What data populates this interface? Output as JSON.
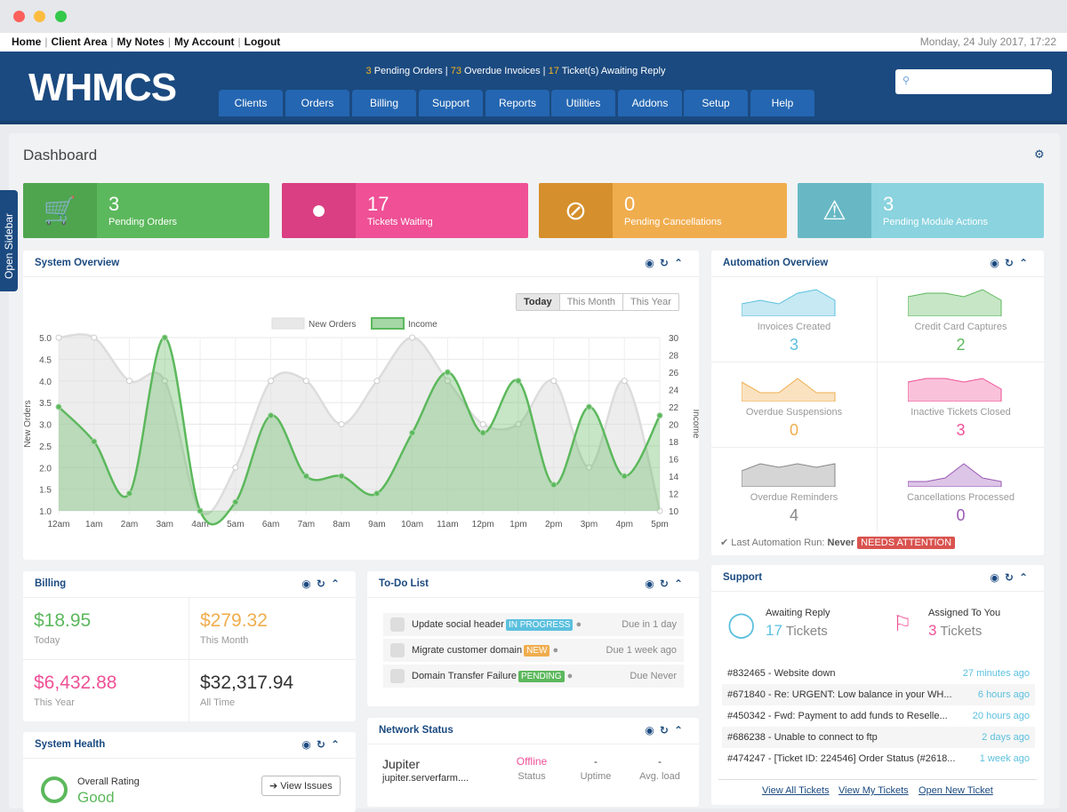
{
  "toplinks": [
    "Home",
    "Client Area",
    "My Notes",
    "My Account",
    "Logout"
  ],
  "datetime": "Monday, 24 July 2017, 17:22",
  "logo": "WHMCS",
  "alerts": {
    "pending_orders": "3",
    "pending_orders_label": " Pending Orders | ",
    "overdue": "73",
    "overdue_label": " Overdue Invoices | ",
    "tickets": "17",
    "tickets_label": " Ticket(s) Awaiting Reply"
  },
  "nav": [
    "Clients",
    "Orders",
    "Billing",
    "Support",
    "Reports",
    "Utilities",
    "Addons",
    "Setup",
    "Help"
  ],
  "search": {
    "value": "",
    "placeholder": ""
  },
  "sidebar_tab": "Open Sidebar",
  "page_title": "Dashboard",
  "tiles": [
    {
      "num": "3",
      "label": "Pending Orders",
      "color": "#5cb85c",
      "dark": "#4ea54e",
      "icon": "cart-icon"
    },
    {
      "num": "17",
      "label": "Tickets Waiting",
      "color": "#ef5096",
      "dark": "#d93f82",
      "icon": "comment-icon"
    },
    {
      "num": "0",
      "label": "Pending Cancellations",
      "color": "#f0ad4e",
      "dark": "#d58f2c",
      "icon": "ban-icon"
    },
    {
      "num": "3",
      "label": "Pending Module Actions",
      "color": "#8ad3df",
      "dark": "#67b8c4",
      "icon": "warning-icon"
    }
  ],
  "system_overview": {
    "title": "System Overview",
    "ranges": [
      "Today",
      "This Month",
      "This Year"
    ]
  },
  "chart_data": {
    "type": "line",
    "categories": [
      "12am",
      "1am",
      "2am",
      "3am",
      "4am",
      "5am",
      "6am",
      "7am",
      "8am",
      "9am",
      "10am",
      "11am",
      "12pm",
      "1pm",
      "2pm",
      "3pm",
      "4pm",
      "5pm"
    ],
    "series": [
      {
        "name": "New Orders",
        "axis": "left",
        "color": "#dcdcdc",
        "values": [
          5,
          5,
          4,
          4,
          1,
          2,
          4,
          4,
          3,
          4,
          5,
          4,
          3,
          3,
          4,
          2,
          4,
          1
        ]
      },
      {
        "name": "Income",
        "axis": "right",
        "color": "#5cb85c",
        "values": [
          22,
          18,
          12,
          30,
          10,
          11,
          21,
          14,
          14,
          12,
          19,
          26,
          19,
          25,
          13,
          22,
          14,
          21
        ]
      }
    ],
    "ylabel": "New Orders",
    "y2label": "Income",
    "ylim": [
      1,
      5
    ],
    "y2lim": [
      10,
      30
    ],
    "yticks": [
      "5.0",
      "4.5",
      "4.0",
      "3.5",
      "3.0",
      "2.5",
      "2.0",
      "1.5",
      "1.0"
    ],
    "y2ticks": [
      "30",
      "28",
      "26",
      "24",
      "22",
      "20",
      "18",
      "16",
      "14",
      "12",
      "10"
    ],
    "grid": true,
    "legend": "top-center"
  },
  "automation": {
    "title": "Automation Overview",
    "items": [
      {
        "label": "Invoices Created",
        "value": "3",
        "color": "#5bc0de"
      },
      {
        "label": "Credit Card Captures",
        "value": "2",
        "color": "#5cb85c"
      },
      {
        "label": "Overdue Suspensions",
        "value": "0",
        "color": "#f0ad4e"
      },
      {
        "label": "Inactive Tickets Closed",
        "value": "3",
        "color": "#ef5096"
      },
      {
        "label": "Overdue Reminders",
        "value": "4",
        "color": "#888888"
      },
      {
        "label": "Cancellations Processed",
        "value": "0",
        "color": "#9b59b6"
      }
    ],
    "last_run_label": "Last Automation Run:",
    "last_run": "Never",
    "status": "NEEDS ATTENTION"
  },
  "billing": {
    "title": "Billing",
    "items": [
      {
        "value": "$18.95",
        "label": "Today",
        "color": "#5cb85c"
      },
      {
        "value": "$279.32",
        "label": "This Month",
        "color": "#f0ad4e"
      },
      {
        "value": "$6,432.88",
        "label": "This Year",
        "color": "#ef5096"
      },
      {
        "value": "$32,317.94",
        "label": "All Time",
        "color": "#333333"
      }
    ]
  },
  "todo": {
    "title": "To-Do List",
    "items": [
      {
        "text": "Update social header",
        "badge": "IN PROGRESS",
        "badge_color": "#5bc0de",
        "due": "Due in 1 day"
      },
      {
        "text": "Migrate customer domain",
        "badge": "NEW",
        "badge_color": "#f0ad4e",
        "due": "Due 1 week ago"
      },
      {
        "text": "Domain Transfer Failure",
        "badge": "PENDING",
        "badge_color": "#5cb85c",
        "due": "Due Never"
      }
    ]
  },
  "health": {
    "title": "System Health",
    "rating_label": "Overall Rating",
    "rating": "Good",
    "button": "View Issues"
  },
  "network": {
    "title": "Network Status",
    "server": "Jupiter",
    "host": "jupiter.serverfarm....",
    "status": "Offline",
    "status_label": "Status",
    "uptime": "-",
    "uptime_label": "Uptime",
    "load": "-",
    "load_label": "Avg. load"
  },
  "support": {
    "title": "Support",
    "awaiting_label": "Awaiting Reply",
    "awaiting": "17",
    "assigned_label": "Assigned To You",
    "assigned": "3",
    "tickets_word": "Tickets",
    "tickets": [
      {
        "subject": "#832465 - Website down",
        "ago": "27 minutes ago"
      },
      {
        "subject": "#671840 - Re: URGENT: Low balance in your WH...",
        "ago": "6 hours ago"
      },
      {
        "subject": "#450342 - Fwd: Payment to add funds to Reselle...",
        "ago": "20 hours ago"
      },
      {
        "subject": "#686238 - Unable to connect to ftp",
        "ago": "2 days ago"
      },
      {
        "subject": "#474247 - [Ticket ID: 224546] Order Status (#2618...",
        "ago": "1 week ago"
      }
    ],
    "links": [
      "View All Tickets",
      "View My Tickets",
      "Open New Ticket"
    ]
  }
}
